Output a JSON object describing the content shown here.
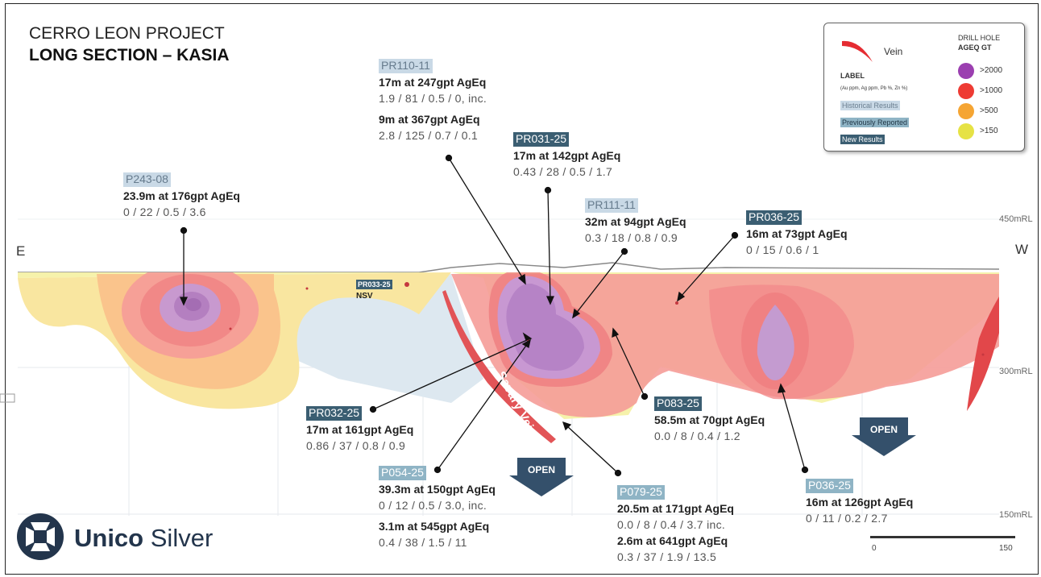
{
  "title": "CERRO LEON PROJECT",
  "subtitle": "LONG SECTION – KASIA",
  "direction": {
    "left": "E",
    "right": "W"
  },
  "elevations": [
    "450mRL",
    "300mRL",
    "150mRL"
  ],
  "vein_name": "Savary Vein",
  "open_label": "OPEN",
  "legend": {
    "vein": "Vein",
    "drill_hole": "DRILL HOLE",
    "ageq_gt": "AGEQ GT",
    "label_heading": "LABEL",
    "label_units": "(Au ppm, Ag ppm, Pb %, Zn %)",
    "historical": "Historical Results",
    "previous": "Previously Reported",
    "new": "New Results",
    "grades": [
      {
        "label": ">2000",
        "color": "#9b3fb0"
      },
      {
        "label": ">1000",
        "color": "#ee3b33"
      },
      {
        "label": ">500",
        "color": "#f5a533"
      },
      {
        "label": ">150",
        "color": "#e6e245"
      }
    ]
  },
  "holes": {
    "PR110_11": {
      "name": "PR110-11",
      "l1": "17m at 247gpt AgEq",
      "v1": "1.9 / 81 / 0.5 / 0, inc.",
      "l2": "9m at 367gpt AgEq",
      "v2": "2.8 / 125 / 0.7 / 0.1"
    },
    "PR031_25": {
      "name": "PR031-25",
      "l1": "17m at 142gpt AgEq",
      "v1": "0.43 / 28 / 0.5 / 1.7"
    },
    "P243_08": {
      "name": "P243-08",
      "l1": "23.9m at 176gpt AgEq",
      "v1": "0 / 22 / 0.5 / 3.6"
    },
    "PR111_11": {
      "name": "PR111-11",
      "l1": "32m at 94gpt AgEq",
      "v1": "0.3 / 18 / 0.8 / 0.9"
    },
    "PR036_25": {
      "name": "PR036-25",
      "l1": "16m at 73gpt AgEq",
      "v1": "0 / 15 / 0.6 / 1"
    },
    "PR033_25": {
      "name": "PR033-25",
      "note": "NSV"
    },
    "PR032_25": {
      "name": "PR032-25",
      "l1": "17m at 161gpt AgEq",
      "v1": "0.86 / 37 / 0.8 / 0.9"
    },
    "P083_25": {
      "name": "P083-25",
      "l1": "58.5m at 70gpt AgEq",
      "v1": "0.0 / 8 / 0.4 / 1.2"
    },
    "P054_25": {
      "name": "P054-25",
      "l1": "39.3m at 150gpt AgEq",
      "v1": "0 / 12 / 0.5 / 3.0, inc.",
      "l2": "3.1m at 545gpt AgEq",
      "v2": "0.4 / 38 / 1.5 / 11"
    },
    "P079_25": {
      "name": "P079-25",
      "l1": "20.5m at 171gpt AgEq",
      "v1": "0.0 / 8 / 0.4 / 3.7 inc.",
      "l2": "2.6m at 641gpt AgEq",
      "v2": "0.3 / 37 / 1.9 / 13.5"
    },
    "P036_25": {
      "name": "P036-25",
      "l1": "16m at 126gpt AgEq",
      "v1": "0 / 11 / 0.2 / 2.7"
    }
  },
  "scale": {
    "start": "0",
    "end": "150"
  },
  "logo": {
    "word1": "Unico",
    "word2": "Silver"
  }
}
